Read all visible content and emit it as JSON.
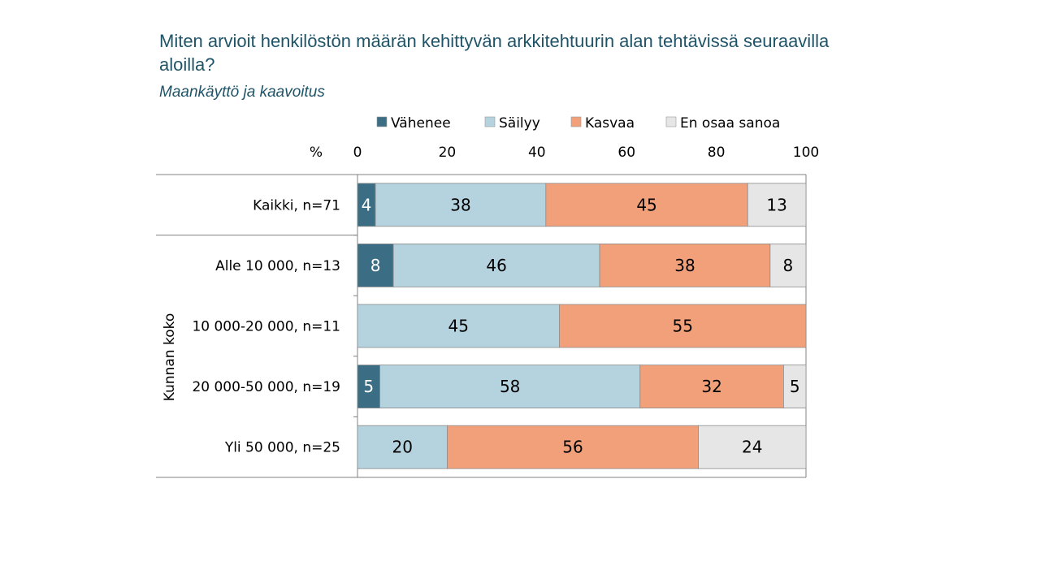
{
  "title": "Miten arvioit henkilöstön määrän kehittyvän arkkitehtuurin alan tehtävissä seuraavilla aloilla?",
  "subtitle": "Maankäyttö ja kaavoitus",
  "chart_data": {
    "type": "bar",
    "orientation": "horizontal-stacked-100",
    "axis_unit_label": "%",
    "xlim": [
      0,
      100
    ],
    "x_ticks": [
      "0",
      "20",
      "40",
      "60",
      "80",
      "100"
    ],
    "group_label": "Kunnan koko",
    "legend_position": "top",
    "series": [
      {
        "name": "Vähenee",
        "color": "#3b6e84"
      },
      {
        "name": "Säilyy",
        "color": "#b5d3de"
      },
      {
        "name": "Kasvaa",
        "color": "#f2a07a"
      },
      {
        "name": "En osaa sanoa",
        "color": "#e6e6e6"
      }
    ],
    "rows": [
      {
        "label": "Kaikki, n=71",
        "values": [
          4,
          38,
          45,
          13
        ]
      },
      {
        "label": "Alle 10 000, n=13",
        "values": [
          8,
          46,
          38,
          8
        ]
      },
      {
        "label": "10 000-20 000, n=11",
        "values": [
          0,
          45,
          55,
          0
        ]
      },
      {
        "label": "20 000-50 000, n=19",
        "values": [
          5,
          58,
          32,
          5
        ]
      },
      {
        "label": "Yli 50 000, n=25",
        "values": [
          0,
          20,
          56,
          24
        ]
      }
    ]
  }
}
